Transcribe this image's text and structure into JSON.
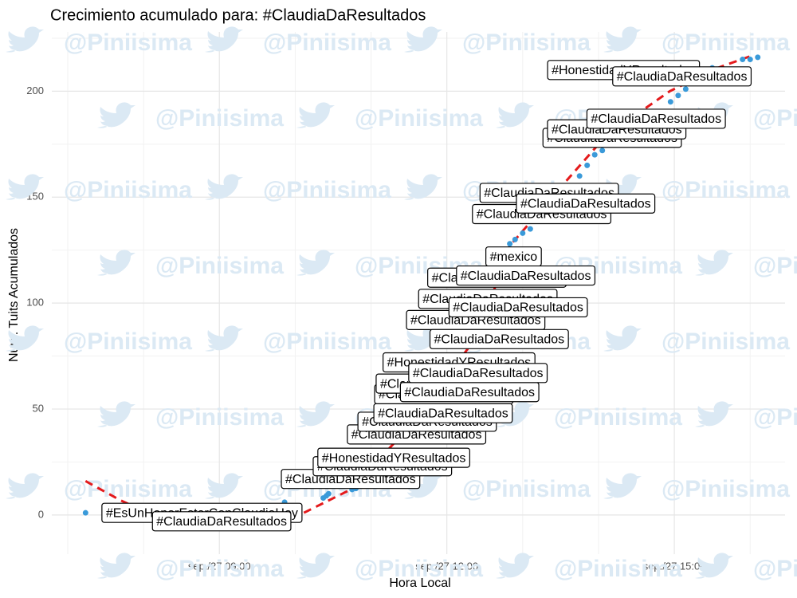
{
  "chart_data": {
    "type": "scatter",
    "title": "Crecimiento acumulado para: #ClaudiaDaResultados",
    "xlabel": "Hora Local",
    "ylabel": "Num. Tuits Acumulados",
    "watermark": "@Piniisima",
    "color": "#3a9ad9",
    "x": [
      7.235,
      8.77,
      9.03,
      9.86,
      10.37,
      10.41,
      10.44,
      10.73,
      10.75,
      10.8,
      11.15,
      11.3,
      11.6,
      11.74,
      11.95,
      11.96,
      11.98,
      12.16,
      12.3,
      12.38,
      12.41,
      12.54,
      12.66,
      12.69,
      12.83,
      12.88,
      12.9,
      12.94,
      13.0,
      13.04,
      13.1,
      13.25,
      13.35,
      13.75,
      13.83,
      13.85,
      13.95,
      14.05,
      14.18,
      14.24,
      14.33,
      14.76,
      14.95,
      15.05,
      15.1,
      15.15,
      15.5,
      15.9,
      16.0,
      16.1
    ],
    "values": [
      1,
      1,
      -3,
      6,
      8,
      9,
      10,
      17,
      12,
      12.5,
      23,
      27,
      38,
      44,
      48,
      57,
      62,
      72,
      58,
      92,
      67,
      102,
      112,
      83,
      128,
      122,
      130,
      98,
      133,
      113,
      135,
      142,
      152,
      160,
      147,
      165,
      170,
      172,
      178,
      182,
      210,
      187,
      195,
      198,
      207,
      201,
      211,
      215,
      215,
      216
    ],
    "labels": [
      null,
      "#EsUnHonorEstarConClaudiaHoy",
      "#ClaudiaDaResultados",
      null,
      null,
      null,
      null,
      "#ClaudiaDaResultados",
      null,
      null,
      "#ClaudiaDaResultados",
      "#HonestidadYResultados",
      "#ClaudiaDaResultados",
      "#ClaudiaDaResultados",
      "#ClaudiaDaResultados",
      "#ClaudiaDaResultados",
      "#ClaudiaDaResultados",
      "#HonestidadYResultados",
      "#ClaudiaDaResultados",
      "#ClaudiaDaResultados",
      "#ClaudiaDaResultados",
      "#ClaudiaDaResultados",
      "#ClaudiaDaResultados",
      "#ClaudiaDaResultados",
      null,
      "#mexico",
      null,
      "#ClaudiaDaResultados",
      null,
      "#ClaudiaDaResultados",
      null,
      "#ClaudiaDaResultados",
      "#ClaudiaDaResultados",
      null,
      "#ClaudiaDaResultados",
      null,
      null,
      null,
      "#ClaudiaDaResultados",
      "#ClaudiaDaResultados",
      "#HonestidadYResultados",
      "#ClaudiaDaResultados",
      null,
      null,
      "#ClaudiaDaResultados",
      null,
      null,
      null,
      null,
      null
    ],
    "trend": {
      "color": "#e41a1c",
      "x": [
        7.235,
        7.69,
        8.37,
        9.16,
        10.0,
        10.73,
        11.57,
        12.41,
        12.83,
        13.46,
        14.1,
        14.94,
        15.57,
        16.04
      ],
      "values": [
        16,
        7,
        -4,
        -6,
        -1,
        12,
        44,
        85,
        127,
        153,
        179,
        200,
        211,
        217
      ]
    },
    "xlim": [
      6.79,
      16.46
    ],
    "ylim": [
      -18.5,
      228
    ],
    "xticks": [
      {
        "value": 9,
        "label": "sep./27 09:00"
      },
      {
        "value": 12,
        "label": "sep./27 12:00"
      },
      {
        "value": 15,
        "label": "sep./27 15:00"
      }
    ],
    "yticks": [
      0,
      50,
      100,
      150,
      200
    ],
    "xgrid_minor": [
      7,
      8,
      10,
      11,
      13,
      14,
      16
    ],
    "ygrid_minor": [
      -25,
      25,
      75,
      125,
      175,
      225
    ],
    "grid": true
  }
}
